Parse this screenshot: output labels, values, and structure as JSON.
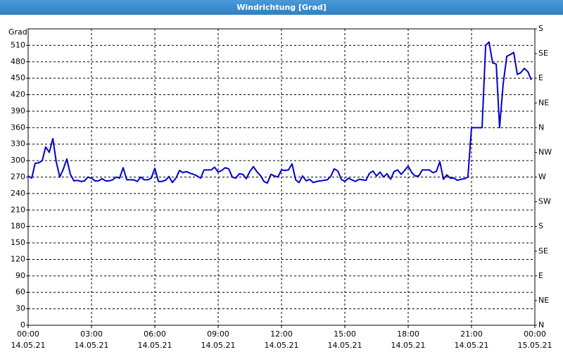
{
  "chart_data": {
    "type": "line",
    "title": "Windrichtung [Grad]",
    "y_label": "Grad",
    "x": [
      0,
      0.17,
      0.33,
      0.5,
      0.67,
      0.83,
      1,
      1.17,
      1.33,
      1.5,
      1.67,
      1.83,
      2,
      2.17,
      2.33,
      2.5,
      2.67,
      2.83,
      3,
      3.17,
      3.33,
      3.5,
      3.67,
      3.83,
      4,
      4.17,
      4.33,
      4.5,
      4.67,
      4.83,
      5,
      5.17,
      5.33,
      5.5,
      5.67,
      5.83,
      6,
      6.17,
      6.33,
      6.5,
      6.67,
      6.83,
      7,
      7.17,
      7.33,
      7.5,
      7.67,
      7.83,
      8,
      8.17,
      8.33,
      8.5,
      8.67,
      8.83,
      9,
      9.17,
      9.33,
      9.5,
      9.67,
      9.83,
      10,
      10.17,
      10.33,
      10.5,
      10.67,
      10.83,
      11,
      11.17,
      11.33,
      11.5,
      11.67,
      11.83,
      12,
      12.17,
      12.33,
      12.5,
      12.67,
      12.83,
      13,
      13.17,
      13.33,
      13.5,
      13.67,
      13.83,
      14,
      14.17,
      14.33,
      14.5,
      14.67,
      14.83,
      15,
      15.17,
      15.33,
      15.5,
      15.67,
      15.83,
      16,
      16.17,
      16.33,
      16.5,
      16.67,
      16.83,
      17,
      17.17,
      17.33,
      17.5,
      17.67,
      17.83,
      18,
      18.17,
      18.33,
      18.5,
      18.67,
      18.83,
      19,
      19.17,
      19.33,
      19.5,
      19.67,
      19.83,
      20,
      20.17,
      20.33,
      20.5,
      20.67,
      20.83,
      21,
      21.17,
      21.33,
      21.5,
      21.67,
      21.83,
      22,
      22.17,
      22.33,
      22.5,
      22.67,
      22.83,
      23,
      23.17,
      23.33,
      23.5,
      23.67,
      23.83
    ],
    "series": [
      {
        "name": "Windrichtung",
        "color": "#0000cc",
        "values": [
          272,
          268,
          295,
          296,
          300,
          325,
          315,
          340,
          298,
          270,
          285,
          303,
          275,
          263,
          264,
          262,
          263,
          270,
          268,
          263,
          263,
          267,
          263,
          263,
          265,
          270,
          268,
          287,
          265,
          265,
          265,
          262,
          270,
          265,
          265,
          268,
          286,
          262,
          262,
          264,
          271,
          260,
          268,
          282,
          278,
          280,
          277,
          275,
          272,
          268,
          283,
          283,
          283,
          288,
          279,
          282,
          287,
          285,
          270,
          268,
          276,
          275,
          267,
          280,
          289,
          280,
          273,
          262,
          259,
          275,
          272,
          270,
          283,
          282,
          283,
          294,
          265,
          260,
          272,
          263,
          266,
          260,
          262,
          263,
          264,
          265,
          271,
          285,
          281,
          266,
          262,
          268,
          265,
          262,
          266,
          265,
          264,
          277,
          281,
          272,
          279,
          270,
          276,
          266,
          280,
          283,
          275,
          282,
          290,
          278,
          272,
          272,
          283,
          283,
          283,
          278,
          280,
          298,
          266,
          274,
          268,
          268,
          264,
          266,
          267,
          270,
          360,
          360,
          360,
          360,
          510,
          516,
          478,
          476,
          360,
          440,
          490,
          493,
          497,
          457,
          460,
          468,
          462,
          447
        ]
      }
    ],
    "xlim": [
      0,
      24
    ],
    "xticks": [
      {
        "value": 0,
        "label": "00:00\n14.05.21"
      },
      {
        "value": 3,
        "label": "03:00\n14.05.21"
      },
      {
        "value": 6,
        "label": "06:00\n14.05.21"
      },
      {
        "value": 9,
        "label": "09:00\n14.05.21"
      },
      {
        "value": 12,
        "label": "12:00\n14.05.21"
      },
      {
        "value": 15,
        "label": "15:00\n14.05.21"
      },
      {
        "value": 18,
        "label": "18:00\n14.05.21"
      },
      {
        "value": 21,
        "label": "21:00\n14.05.21"
      },
      {
        "value": 24,
        "label": "00:00\n15.05.21"
      }
    ],
    "ylim": [
      0,
      540
    ],
    "yticks": [
      0,
      30,
      60,
      90,
      120,
      150,
      180,
      210,
      240,
      270,
      300,
      330,
      360,
      390,
      420,
      450,
      480,
      510
    ],
    "y2lim": [
      0,
      540
    ],
    "y2ticks": [
      {
        "value": 0,
        "label": "N"
      },
      {
        "value": 45,
        "label": "NE"
      },
      {
        "value": 90,
        "label": "E"
      },
      {
        "value": 135,
        "label": "SE"
      },
      {
        "value": 180,
        "label": "S"
      },
      {
        "value": 225,
        "label": "SW"
      },
      {
        "value": 270,
        "label": "W"
      },
      {
        "value": 315,
        "label": "NW"
      },
      {
        "value": 360,
        "label": "N"
      },
      {
        "value": 405,
        "label": "NE"
      },
      {
        "value": 450,
        "label": "E"
      },
      {
        "value": 495,
        "label": "SE"
      },
      {
        "value": 540,
        "label": "S"
      }
    ],
    "grid": true
  }
}
